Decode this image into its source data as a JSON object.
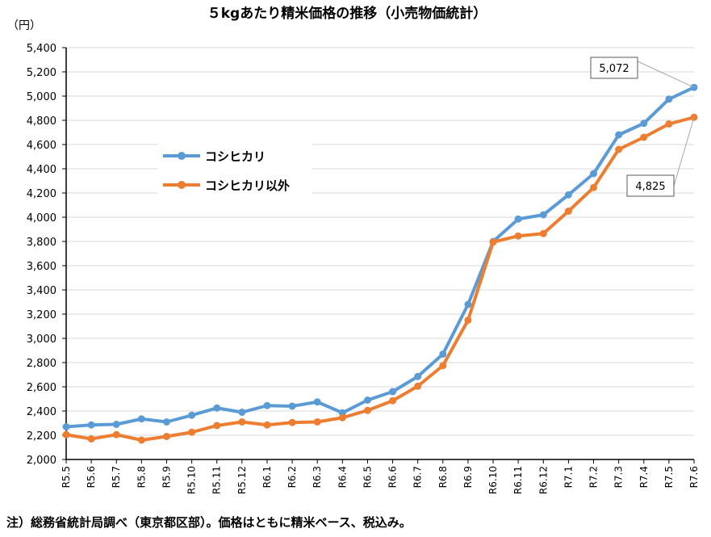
{
  "chart_data": {
    "type": "line",
    "title": "５kgあたり精米価格の推移（小売物価統計）",
    "ylabel": "（円）",
    "xlabel": "",
    "ylim": [
      2000,
      5400
    ],
    "yticks": [
      2000,
      2200,
      2400,
      2600,
      2800,
      3000,
      3200,
      3400,
      3600,
      3800,
      4000,
      4200,
      4400,
      4600,
      4800,
      5000,
      5200,
      5400
    ],
    "ytick_labels": [
      "2,000",
      "2,200",
      "2,400",
      "2,600",
      "2,800",
      "3,000",
      "3,200",
      "3,400",
      "3,600",
      "3,800",
      "4,000",
      "4,200",
      "4,400",
      "4,600",
      "4,800",
      "5,000",
      "5,200",
      "5,400"
    ],
    "categories": [
      "R5.5",
      "R5.6",
      "R5.7",
      "R5.8",
      "R5.9",
      "R5.10",
      "R5.11",
      "R5.12",
      "R6.1",
      "R6.2",
      "R6.3",
      "R6.4",
      "R6.5",
      "R6.6",
      "R6.7",
      "R6.8",
      "R6.9",
      "R6.10",
      "R6.11",
      "R6.12",
      "R7.1",
      "R7.2",
      "R7.3",
      "R7.4",
      "R7.5",
      "R7.6"
    ],
    "grid": true,
    "legend_position": "upper-left",
    "series": [
      {
        "name": "コシヒカリ",
        "color": "#5B9BD5",
        "values": [
          2270,
          2285,
          2290,
          2335,
          2310,
          2365,
          2425,
          2390,
          2445,
          2440,
          2475,
          2385,
          2490,
          2560,
          2685,
          2870,
          3280,
          3800,
          3985,
          4020,
          4185,
          4360,
          4680,
          4775,
          4975,
          5072
        ]
      },
      {
        "name": "コシヒカリ以外",
        "color": "#ED7D31",
        "values": [
          2205,
          2170,
          2205,
          2160,
          2190,
          2225,
          2280,
          2310,
          2285,
          2305,
          2310,
          2345,
          2405,
          2485,
          2605,
          2775,
          3150,
          3795,
          3845,
          3865,
          4050,
          4245,
          4560,
          4660,
          4770,
          4825
        ]
      }
    ],
    "annotations": [
      {
        "text": "5,072",
        "series": 0,
        "index": 25
      },
      {
        "text": "4,825",
        "series": 1,
        "index": 25
      }
    ]
  },
  "note": "注）総務省統計局調べ（東京都区部）。価格はともに精米ベース、税込み。"
}
